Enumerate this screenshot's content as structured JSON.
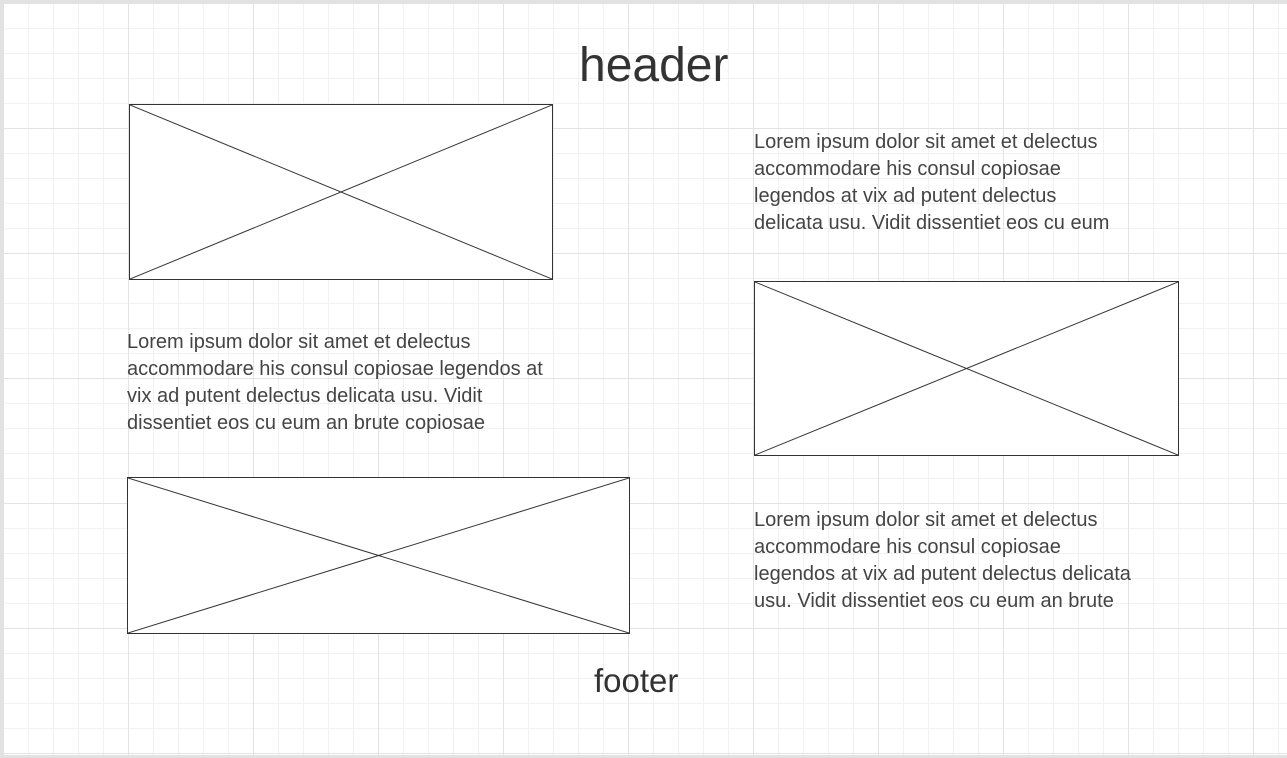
{
  "header": {
    "text": "header"
  },
  "footer": {
    "text": "footer"
  },
  "paragraphs": [
    {
      "text": "Lorem ipsum dolor sit amet et delectus\naccommodare his consul copiosae\nlegendos at vix ad putent delectus\ndelicata usu. Vidit dissentiet eos cu eum"
    },
    {
      "text": "Lorem ipsum dolor sit amet et delectus\naccommodare his consul copiosae legendos at\nvix ad putent delectus delicata usu. Vidit\ndissentiet eos cu eum an brute copiosae"
    },
    {
      "text": "Lorem ipsum dolor sit amet et delectus\naccommodare his consul copiosae\nlegendos at vix ad putent delectus delicata\nusu. Vidit dissentiet eos cu eum an brute"
    }
  ],
  "image_placeholders": [
    {
      "icon": "image-placeholder-icon"
    },
    {
      "icon": "image-placeholder-icon"
    },
    {
      "icon": "image-placeholder-icon"
    }
  ],
  "colors": {
    "stroke": "#333333",
    "text": "#444444",
    "grid_major": "#e3e3e3",
    "grid_minor": "#f1f1f1"
  }
}
